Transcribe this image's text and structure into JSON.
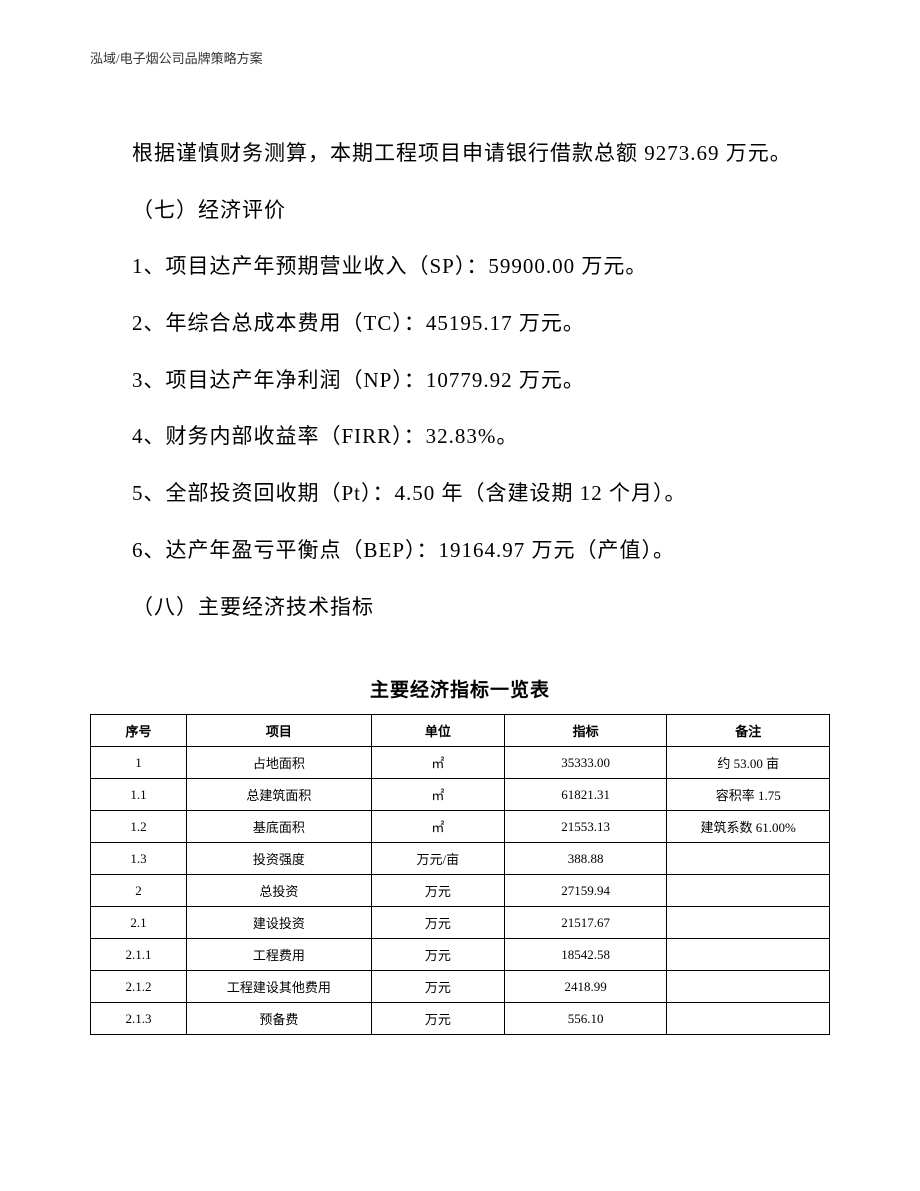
{
  "header": {
    "text": "泓域/电子烟公司品牌策略方案"
  },
  "body": {
    "p1": "根据谨慎财务测算，本期工程项目申请银行借款总额 9273.69 万元。",
    "p2": "（七）经济评价",
    "p3": "1、项目达产年预期营业收入（SP）：59900.00 万元。",
    "p4": "2、年综合总成本费用（TC）：45195.17 万元。",
    "p5": "3、项目达产年净利润（NP）：10779.92 万元。",
    "p6": "4、财务内部收益率（FIRR）：32.83%。",
    "p7": "5、全部投资回收期（Pt）：4.50 年（含建设期 12 个月）。",
    "p8": "6、达产年盈亏平衡点（BEP）：19164.97 万元（产值）。",
    "p9": "（八）主要经济技术指标"
  },
  "table": {
    "title": "主要经济指标一览表",
    "columns": [
      "序号",
      "项目",
      "单位",
      "指标",
      "备注"
    ],
    "rows": [
      [
        "1",
        "占地面积",
        "㎡",
        "35333.00",
        "约 53.00 亩"
      ],
      [
        "1.1",
        "总建筑面积",
        "㎡",
        "61821.31",
        "容积率 1.75"
      ],
      [
        "1.2",
        "基底面积",
        "㎡",
        "21553.13",
        "建筑系数 61.00%"
      ],
      [
        "1.3",
        "投资强度",
        "万元/亩",
        "388.88",
        ""
      ],
      [
        "2",
        "总投资",
        "万元",
        "27159.94",
        ""
      ],
      [
        "2.1",
        "建设投资",
        "万元",
        "21517.67",
        ""
      ],
      [
        "2.1.1",
        "工程费用",
        "万元",
        "18542.58",
        ""
      ],
      [
        "2.1.2",
        "工程建设其他费用",
        "万元",
        "2418.99",
        ""
      ],
      [
        "2.1.3",
        "预备费",
        "万元",
        "556.10",
        ""
      ]
    ]
  }
}
